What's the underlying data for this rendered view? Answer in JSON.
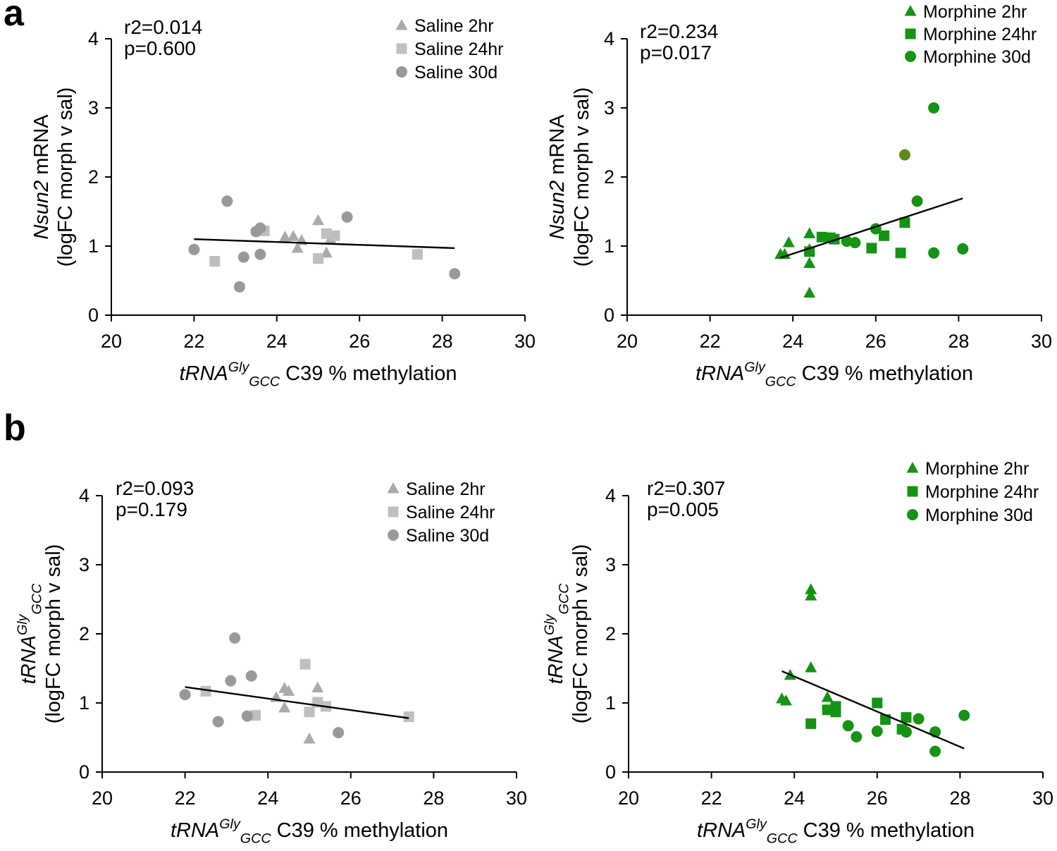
{
  "panel_labels": {
    "a": "a",
    "b": "b"
  },
  "colors": {
    "saline_tri": "#aaaaaa",
    "saline_sq": "#bfbfbf",
    "saline_circ": "#999999",
    "morph": "#149314",
    "morph_dark": "#5b8c16",
    "axis": "#000000"
  },
  "chart_data": [
    {
      "id": "a-saline",
      "type": "scatter",
      "title": "",
      "stats": [
        "r2=0.014",
        "p=0.600"
      ],
      "ylabel_lines": [
        {
          "italic": "Nsun2",
          "plain": " mRNA"
        },
        {
          "plain": "(logFC morph v sal)"
        }
      ],
      "xlabel": {
        "base": "tRNA",
        "sup": "Gly",
        "sub": "GCC",
        "rest": " C39 % methylation"
      },
      "xlim": [
        20,
        30
      ],
      "ylim": [
        0,
        4
      ],
      "xticks": [
        "20",
        "22",
        "24",
        "26",
        "28",
        "30"
      ],
      "yticks": [
        "0",
        "1",
        "2",
        "3",
        "4"
      ],
      "legend_position": "top-right",
      "legend": [
        {
          "label": "Saline 2hr",
          "marker": "triangle"
        },
        {
          "label": "Saline 24hr",
          "marker": "square"
        },
        {
          "label": "Saline 30d",
          "marker": "circle"
        }
      ],
      "fit": {
        "x1": 22.0,
        "y1": 1.1,
        "x2": 28.3,
        "y2": 0.97
      },
      "series": [
        {
          "name": "Saline 2hr",
          "marker": "triangle",
          "points": [
            [
              24.2,
              1.13
            ],
            [
              24.4,
              1.14
            ],
            [
              24.5,
              0.97
            ],
            [
              24.6,
              1.08
            ],
            [
              25.0,
              1.37
            ],
            [
              25.2,
              0.9
            ],
            [
              25.3,
              1.1
            ]
          ]
        },
        {
          "name": "Saline 24hr",
          "marker": "square",
          "points": [
            [
              22.5,
              0.78
            ],
            [
              23.7,
              1.22
            ],
            [
              25.0,
              0.82
            ],
            [
              25.2,
              1.18
            ],
            [
              25.4,
              1.15
            ],
            [
              27.4,
              0.88
            ]
          ]
        },
        {
          "name": "Saline 30d",
          "marker": "circle",
          "points": [
            [
              22.0,
              0.95
            ],
            [
              22.8,
              1.65
            ],
            [
              23.1,
              0.41
            ],
            [
              23.2,
              0.84
            ],
            [
              23.5,
              1.21
            ],
            [
              23.6,
              1.26
            ],
            [
              23.6,
              0.88
            ],
            [
              25.7,
              1.42
            ],
            [
              28.3,
              0.6
            ]
          ]
        }
      ]
    },
    {
      "id": "a-morphine",
      "type": "scatter",
      "title": "",
      "stats": [
        "r2=0.234",
        "p=0.017"
      ],
      "ylabel_lines": [
        {
          "italic": "Nsun2",
          "plain": " mRNA"
        },
        {
          "plain": "(logFC morph v sal)"
        }
      ],
      "xlabel": {
        "base": "tRNA",
        "sup": "Gly",
        "sub": "GCC",
        "rest": " C39 % methylation"
      },
      "xlim": [
        20,
        30
      ],
      "ylim": [
        0,
        4
      ],
      "xticks": [
        "20",
        "22",
        "24",
        "26",
        "28",
        "30"
      ],
      "yticks": [
        "0",
        "1",
        "2",
        "3",
        "4"
      ],
      "legend_position": "top-right",
      "legend": [
        {
          "label": "Morphine 2hr",
          "marker": "triangle"
        },
        {
          "label": "Morphine 24hr",
          "marker": "square"
        },
        {
          "label": "Morphine 30d",
          "marker": "circle"
        }
      ],
      "fit": {
        "x1": 23.7,
        "y1": 0.83,
        "x2": 28.1,
        "y2": 1.69
      },
      "series": [
        {
          "name": "Morphine 2hr",
          "marker": "triangle",
          "points": [
            [
              23.7,
              0.88
            ],
            [
              23.8,
              0.88
            ],
            [
              23.9,
              1.05
            ],
            [
              24.4,
              1.18
            ],
            [
              24.4,
              0.95
            ],
            [
              24.4,
              0.75
            ],
            [
              24.4,
              0.32
            ]
          ]
        },
        {
          "name": "Morphine 24hr",
          "marker": "square",
          "points": [
            [
              24.4,
              0.92
            ],
            [
              24.7,
              1.13
            ],
            [
              24.9,
              1.12
            ],
            [
              25.0,
              1.1
            ],
            [
              25.9,
              0.97
            ],
            [
              26.2,
              1.15
            ],
            [
              26.6,
              0.9
            ],
            [
              26.7,
              1.34
            ]
          ]
        },
        {
          "name": "Morphine 30d",
          "marker": "circle",
          "points": [
            [
              25.3,
              1.07
            ],
            [
              25.5,
              1.05
            ],
            [
              26.0,
              1.25
            ],
            [
              26.7,
              2.32
            ],
            [
              27.0,
              1.65
            ],
            [
              27.4,
              3.0
            ],
            [
              27.4,
              0.9
            ],
            [
              28.1,
              0.96
            ]
          ]
        }
      ]
    },
    {
      "id": "b-saline",
      "type": "scatter",
      "title": "",
      "stats": [
        "r2=0.093",
        "p=0.179"
      ],
      "ylabel_lines": [
        {
          "base": "tRNA",
          "sup": "Gly",
          "sub": "GCC"
        },
        {
          "plain": "(logFC morph v sal)"
        }
      ],
      "xlabel": {
        "base": "tRNA",
        "sup": "Gly",
        "sub": "GCC",
        "rest": " C39 % methylation"
      },
      "xlim": [
        20,
        30
      ],
      "ylim": [
        0,
        4
      ],
      "xticks": [
        "20",
        "22",
        "24",
        "26",
        "28",
        "30"
      ],
      "yticks": [
        "0",
        "1",
        "2",
        "3",
        "4"
      ],
      "legend_position": "top-right",
      "legend": [
        {
          "label": "Saline 2hr",
          "marker": "triangle"
        },
        {
          "label": "Saline 24hr",
          "marker": "square"
        },
        {
          "label": "Saline 30d",
          "marker": "circle"
        }
      ],
      "fit": {
        "x1": 22.0,
        "y1": 1.23,
        "x2": 27.4,
        "y2": 0.78
      },
      "series": [
        {
          "name": "Saline 2hr",
          "marker": "triangle",
          "points": [
            [
              24.2,
              1.08
            ],
            [
              24.4,
              1.21
            ],
            [
              24.5,
              1.17
            ],
            [
              24.4,
              0.93
            ],
            [
              25.0,
              0.48
            ],
            [
              25.2,
              1.22
            ]
          ]
        },
        {
          "name": "Saline 24hr",
          "marker": "square",
          "points": [
            [
              22.5,
              1.17
            ],
            [
              23.7,
              0.82
            ],
            [
              24.9,
              1.56
            ],
            [
              25.0,
              0.87
            ],
            [
              25.2,
              1.01
            ],
            [
              25.4,
              0.95
            ],
            [
              27.4,
              0.8
            ]
          ]
        },
        {
          "name": "Saline 30d",
          "marker": "circle",
          "points": [
            [
              22.0,
              1.12
            ],
            [
              22.8,
              0.73
            ],
            [
              23.1,
              1.32
            ],
            [
              23.2,
              1.94
            ],
            [
              23.5,
              0.81
            ],
            [
              23.6,
              1.39
            ],
            [
              25.7,
              0.57
            ]
          ]
        }
      ]
    },
    {
      "id": "b-morphine",
      "type": "scatter",
      "title": "",
      "stats": [
        "r2=0.307",
        "p=0.005"
      ],
      "ylabel_lines": [
        {
          "base": "tRNA",
          "sup": "Gly",
          "sub": "GCC"
        },
        {
          "plain": "(logFC morph v sal)"
        }
      ],
      "xlabel": {
        "base": "tRNA",
        "sup": "Gly",
        "sub": "GCC",
        "rest": " C39 % methylation"
      },
      "xlim": [
        20,
        30
      ],
      "ylim": [
        0,
        4
      ],
      "xticks": [
        "20",
        "22",
        "24",
        "26",
        "28",
        "30"
      ],
      "yticks": [
        "0",
        "1",
        "2",
        "3",
        "4"
      ],
      "legend_position": "top-right",
      "legend": [
        {
          "label": "Morphine 2hr",
          "marker": "triangle"
        },
        {
          "label": "Morphine 24hr",
          "marker": "square"
        },
        {
          "label": "Morphine 30d",
          "marker": "circle"
        }
      ],
      "fit": {
        "x1": 23.7,
        "y1": 1.46,
        "x2": 28.1,
        "y2": 0.34
      },
      "series": [
        {
          "name": "Morphine 2hr",
          "marker": "triangle",
          "points": [
            [
              23.7,
              1.06
            ],
            [
              23.8,
              1.03
            ],
            [
              23.9,
              1.4
            ],
            [
              24.4,
              2.64
            ],
            [
              24.4,
              2.55
            ],
            [
              24.4,
              1.51
            ],
            [
              24.8,
              1.08
            ]
          ]
        },
        {
          "name": "Morphine 24hr",
          "marker": "square",
          "points": [
            [
              24.4,
              0.7
            ],
            [
              24.8,
              0.9
            ],
            [
              25.0,
              0.95
            ],
            [
              25.0,
              0.87
            ],
            [
              26.0,
              1.0
            ],
            [
              26.2,
              0.76
            ],
            [
              26.6,
              0.62
            ],
            [
              26.7,
              0.79
            ]
          ]
        },
        {
          "name": "Morphine 30d",
          "marker": "circle",
          "points": [
            [
              25.3,
              0.67
            ],
            [
              25.5,
              0.51
            ],
            [
              26.0,
              0.59
            ],
            [
              26.7,
              0.58
            ],
            [
              27.0,
              0.77
            ],
            [
              27.4,
              0.58
            ],
            [
              27.4,
              0.3
            ],
            [
              28.1,
              0.82
            ]
          ]
        }
      ]
    }
  ]
}
